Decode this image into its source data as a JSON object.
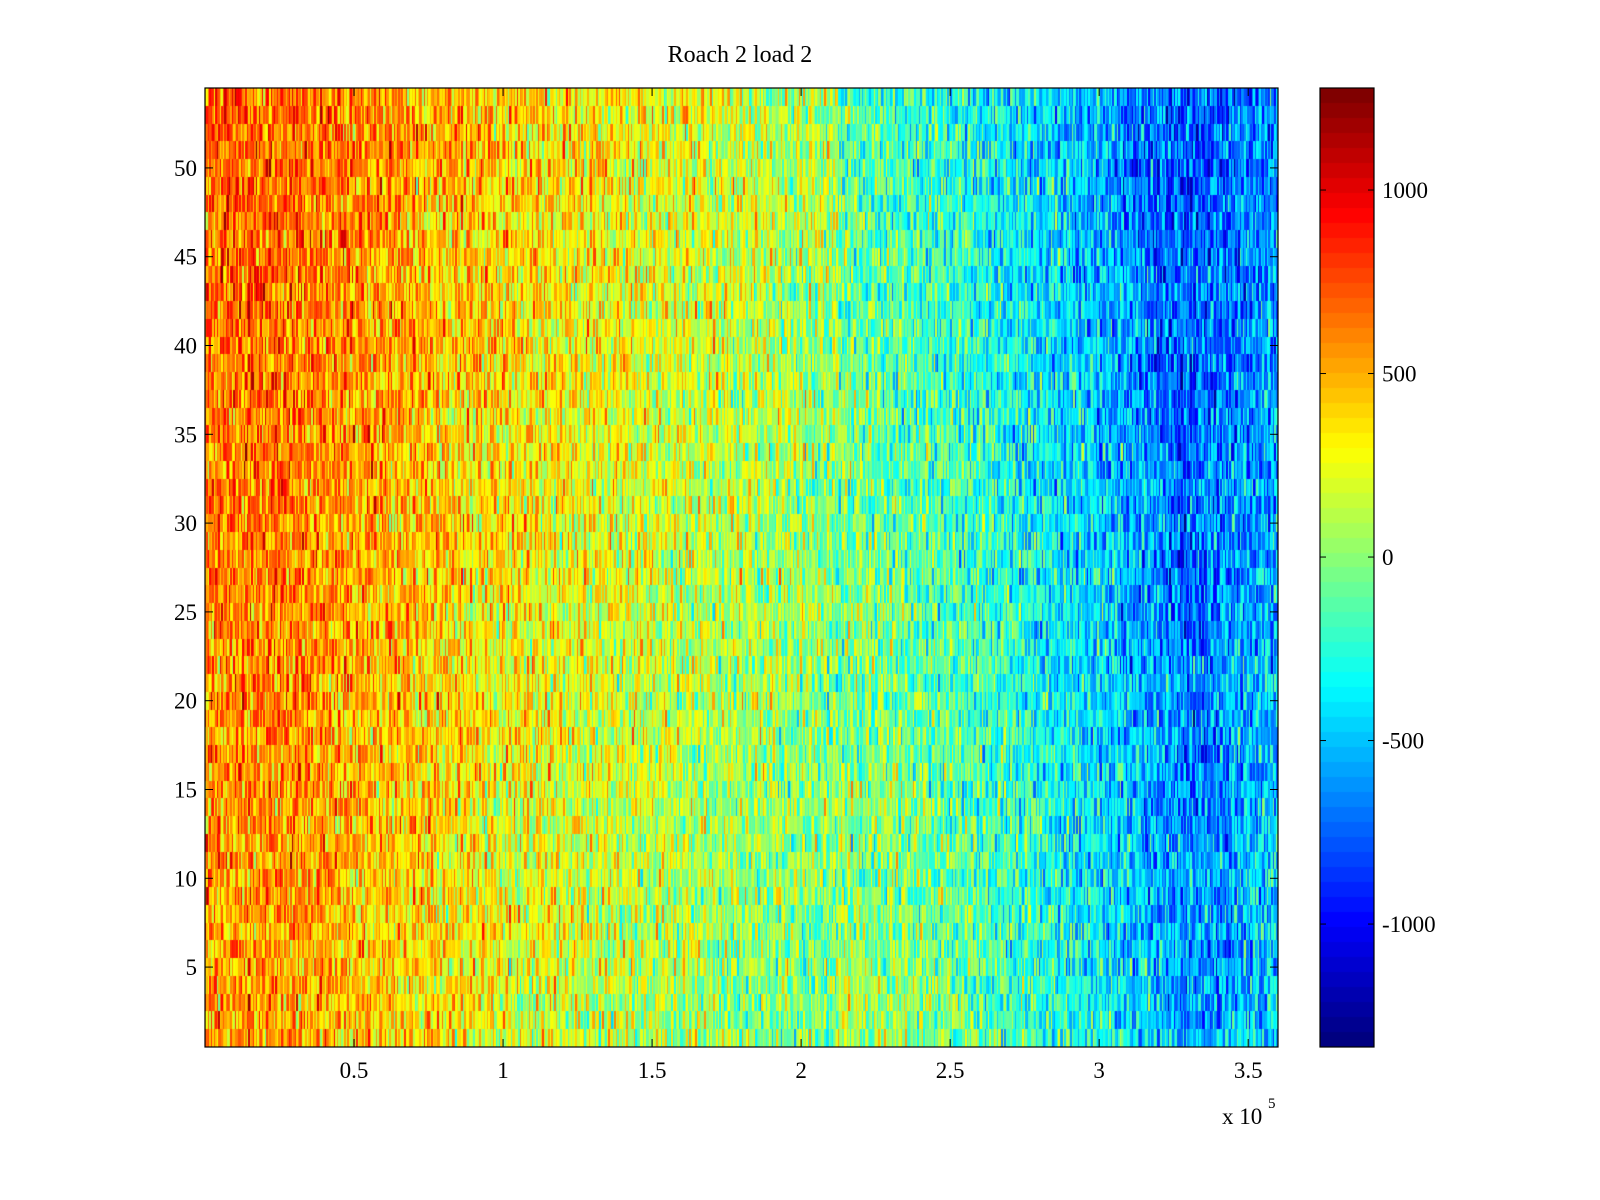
{
  "chart_data": {
    "type": "heatmap",
    "title": "Roach 2 load 2",
    "xlabel": "",
    "ylabel": "",
    "x_exponent_label": "x 10",
    "x_exponent": "5",
    "xlim": [
      0,
      360000
    ],
    "ylim": [
      0.5,
      54.5
    ],
    "rows": 54,
    "x_ticks": [
      50000,
      100000,
      150000,
      200000,
      250000,
      300000,
      350000
    ],
    "x_tick_labels": [
      "0.5",
      "1",
      "1.5",
      "2",
      "2.5",
      "3",
      "3.5"
    ],
    "y_ticks": [
      5,
      10,
      15,
      20,
      25,
      30,
      35,
      40,
      45,
      50
    ],
    "y_tick_labels": [
      "5",
      "10",
      "15",
      "20",
      "25",
      "30",
      "35",
      "40",
      "45",
      "50"
    ],
    "colormap": "jet",
    "clim": [
      -1335,
      1278
    ],
    "colorbar_ticks": [
      1000,
      500,
      0,
      -500,
      -1000
    ],
    "colorbar_tick_labels": [
      "1000",
      "500",
      "0",
      "-500",
      "-1000"
    ],
    "column_mean_profile": {
      "x": [
        0,
        25000,
        50000,
        100000,
        150000,
        200000,
        250000,
        300000,
        330000,
        360000
      ],
      "value": [
        600,
        620,
        520,
        330,
        180,
        50,
        -150,
        -450,
        -700,
        -520
      ]
    },
    "noise_std": 230,
    "grid": false
  }
}
